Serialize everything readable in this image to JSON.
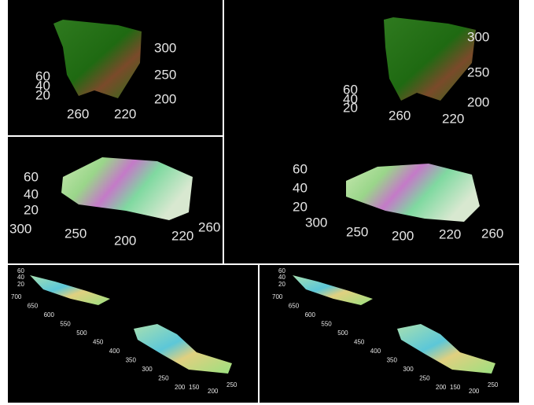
{
  "panels": [
    {
      "z_ticks": [
        60,
        40,
        20
      ],
      "y_ticks": [
        300,
        250,
        200
      ],
      "x_ticks": [
        260,
        220
      ]
    },
    {
      "z_ticks": [
        60,
        40,
        20
      ],
      "y_ticks": [
        300,
        250,
        200
      ],
      "x_ticks": [
        260,
        220
      ]
    },
    {
      "z_ticks": [
        60,
        40,
        20
      ],
      "y_ticks": [
        300,
        250,
        200
      ],
      "x_ticks": [
        220,
        260
      ]
    },
    {
      "z_ticks": [
        60,
        40,
        20
      ],
      "y_ticks": [
        300,
        250,
        200
      ],
      "x_ticks": [
        220,
        260
      ]
    },
    {
      "z_ticks": [
        60,
        40,
        20
      ],
      "y_ticks": [
        700,
        650,
        600,
        550,
        500,
        450,
        400,
        350,
        300,
        250,
        200
      ],
      "x_ticks": [
        150,
        200,
        250
      ]
    },
    {
      "z_ticks": [
        60,
        40,
        20
      ],
      "y_ticks": [
        700,
        650,
        600,
        550,
        500,
        450,
        400,
        350,
        300,
        250,
        200
      ],
      "x_ticks": [
        150,
        200,
        250
      ]
    }
  ]
}
